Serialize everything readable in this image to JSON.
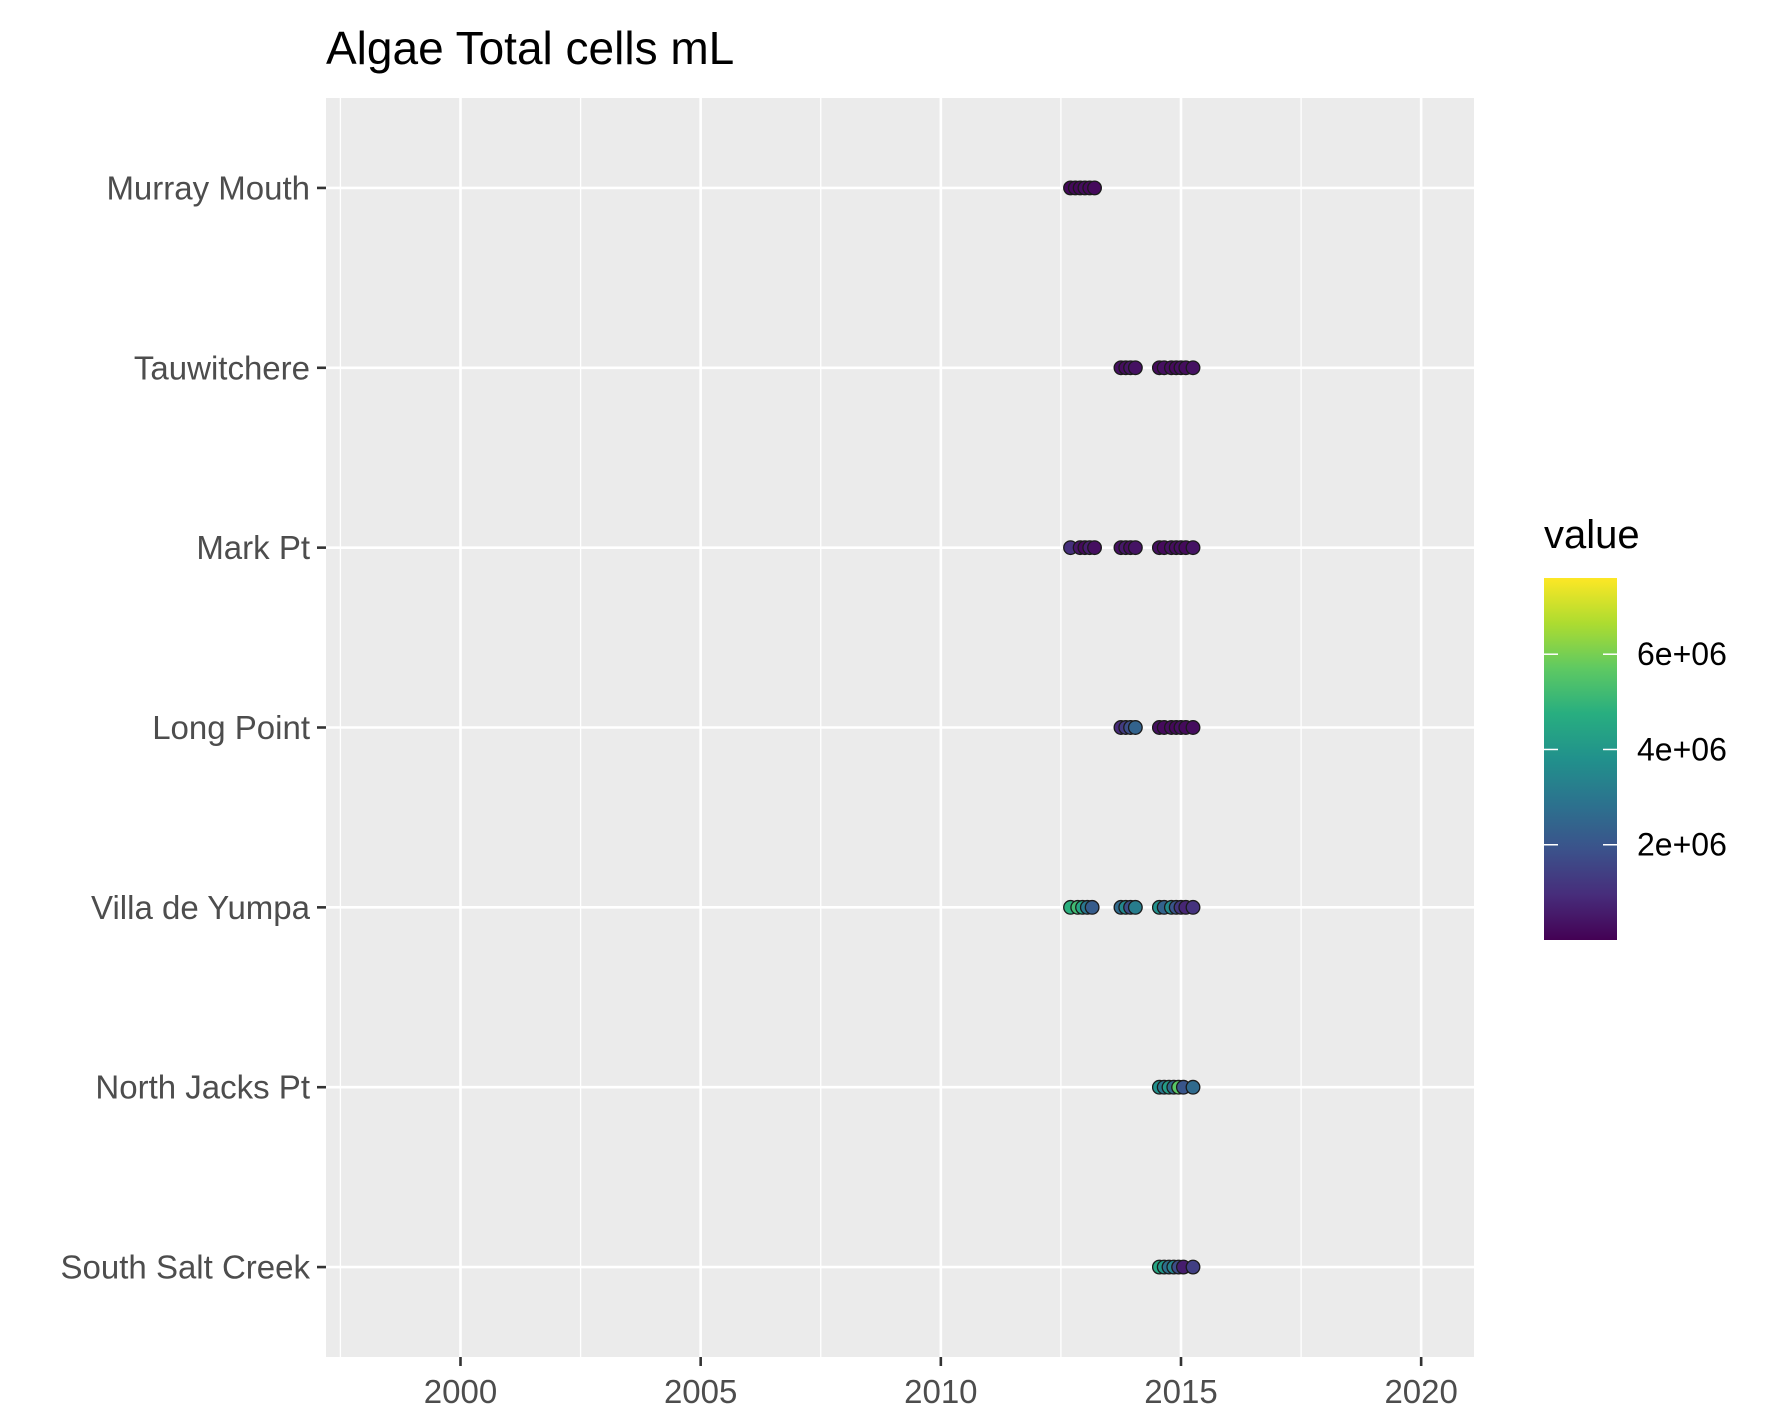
{
  "chart_data": {
    "type": "scatter",
    "title": "Algae Total cells mL",
    "xlabel": "",
    "ylabel": "",
    "xlim": [
      1997.2,
      2021.1
    ],
    "x_ticks": [
      2000,
      2005,
      2010,
      2015,
      2020
    ],
    "x_minor_ticks": [
      1997.5,
      2002.5,
      2007.5,
      2012.5,
      2017.5
    ],
    "categories": [
      "South Salt Creek",
      "North Jacks Pt",
      "Villa de Yumpa",
      "Long Point",
      "Mark Pt",
      "Tauwitchere",
      "Murray Mouth"
    ],
    "grid": true,
    "legend": {
      "title": "value",
      "position": "right",
      "type": "colorbar",
      "palette": "viridis",
      "range": [
        0,
        7600000
      ],
      "breaks": [
        2000000,
        4000000,
        6000000
      ],
      "break_labels": [
        "2e+06",
        "4e+06",
        "6e+06"
      ]
    },
    "series": [
      {
        "name": "Murray Mouth",
        "points": [
          {
            "x": 2012.7,
            "value": 150000
          },
          {
            "x": 2012.8,
            "value": 180000
          },
          {
            "x": 2012.9,
            "value": 120000
          },
          {
            "x": 2013.0,
            "value": 250000
          },
          {
            "x": 2013.1,
            "value": 160000
          },
          {
            "x": 2013.2,
            "value": 200000
          }
        ]
      },
      {
        "name": "Tauwitchere",
        "points": [
          {
            "x": 2013.75,
            "value": 300000
          },
          {
            "x": 2013.85,
            "value": 250000
          },
          {
            "x": 2013.95,
            "value": 400000
          },
          {
            "x": 2014.05,
            "value": 350000
          },
          {
            "x": 2014.55,
            "value": 200000
          },
          {
            "x": 2014.65,
            "value": 300000
          },
          {
            "x": 2014.8,
            "value": 250000
          },
          {
            "x": 2014.9,
            "value": 200000
          },
          {
            "x": 2015.0,
            "value": 300000
          },
          {
            "x": 2015.1,
            "value": 250000
          },
          {
            "x": 2015.25,
            "value": 350000
          }
        ]
      },
      {
        "name": "Mark Pt",
        "points": [
          {
            "x": 2012.7,
            "value": 1000000
          },
          {
            "x": 2012.9,
            "value": 400000
          },
          {
            "x": 2013.0,
            "value": 200000
          },
          {
            "x": 2013.1,
            "value": 600000
          },
          {
            "x": 2013.2,
            "value": 300000
          },
          {
            "x": 2013.75,
            "value": 300000
          },
          {
            "x": 2013.85,
            "value": 500000
          },
          {
            "x": 2013.95,
            "value": 250000
          },
          {
            "x": 2014.05,
            "value": 400000
          },
          {
            "x": 2014.55,
            "value": 300000
          },
          {
            "x": 2014.65,
            "value": 200000
          },
          {
            "x": 2014.8,
            "value": 350000
          },
          {
            "x": 2014.9,
            "value": 250000
          },
          {
            "x": 2015.0,
            "value": 300000
          },
          {
            "x": 2015.1,
            "value": 200000
          },
          {
            "x": 2015.25,
            "value": 400000
          }
        ]
      },
      {
        "name": "Long Point",
        "points": [
          {
            "x": 2013.75,
            "value": 900000
          },
          {
            "x": 2013.85,
            "value": 1300000
          },
          {
            "x": 2013.95,
            "value": 1800000
          },
          {
            "x": 2014.05,
            "value": 2400000
          },
          {
            "x": 2014.55,
            "value": 300000
          },
          {
            "x": 2014.65,
            "value": 200000
          },
          {
            "x": 2014.8,
            "value": 250000
          },
          {
            "x": 2014.9,
            "value": 150000
          },
          {
            "x": 2015.0,
            "value": 300000
          },
          {
            "x": 2015.1,
            "value": 200000
          },
          {
            "x": 2015.25,
            "value": 250000
          }
        ]
      },
      {
        "name": "Villa de Yumpa",
        "points": [
          {
            "x": 2012.7,
            "value": 4800000
          },
          {
            "x": 2012.85,
            "value": 5200000
          },
          {
            "x": 2012.95,
            "value": 4500000
          },
          {
            "x": 2013.05,
            "value": 3000000
          },
          {
            "x": 2013.15,
            "value": 2200000
          },
          {
            "x": 2013.75,
            "value": 2600000
          },
          {
            "x": 2013.85,
            "value": 3500000
          },
          {
            "x": 2013.95,
            "value": 1800000
          },
          {
            "x": 2014.05,
            "value": 3200000
          },
          {
            "x": 2014.55,
            "value": 3800000
          },
          {
            "x": 2014.65,
            "value": 2400000
          },
          {
            "x": 2014.8,
            "value": 3600000
          },
          {
            "x": 2014.9,
            "value": 2000000
          },
          {
            "x": 2015.0,
            "value": 1200000
          },
          {
            "x": 2015.1,
            "value": 800000
          },
          {
            "x": 2015.25,
            "value": 1100000
          }
        ]
      },
      {
        "name": "North Jacks Pt",
        "points": [
          {
            "x": 2014.55,
            "value": 3800000
          },
          {
            "x": 2014.65,
            "value": 3000000
          },
          {
            "x": 2014.75,
            "value": 4200000
          },
          {
            "x": 2014.85,
            "value": 2600000
          },
          {
            "x": 2014.95,
            "value": 5600000
          },
          {
            "x": 2015.05,
            "value": 2000000
          },
          {
            "x": 2015.25,
            "value": 2600000
          }
        ]
      },
      {
        "name": "South Salt Creek",
        "points": [
          {
            "x": 2014.55,
            "value": 4500000
          },
          {
            "x": 2014.65,
            "value": 4000000
          },
          {
            "x": 2014.75,
            "value": 2800000
          },
          {
            "x": 2014.85,
            "value": 3400000
          },
          {
            "x": 2014.95,
            "value": 1800000
          },
          {
            "x": 2015.05,
            "value": 600000
          },
          {
            "x": 2015.25,
            "value": 1400000
          }
        ]
      }
    ]
  }
}
